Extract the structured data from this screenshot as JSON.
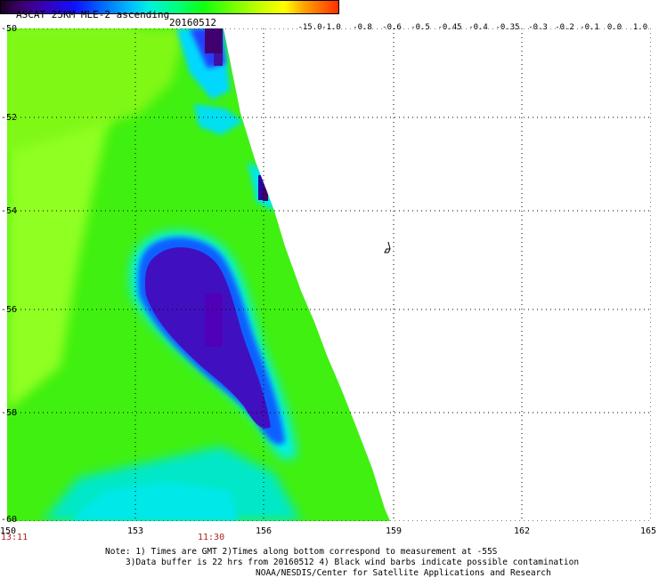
{
  "header": {
    "title": "ASCAT 25KM MLE-2 ascending",
    "date": "20160512"
  },
  "colorbar": {
    "labels": [
      "-15.0",
      "-1.0",
      "-0.8",
      "-0.6",
      "-0.5",
      "-0.45",
      "-0.4",
      "-0.35",
      "-0.3",
      "-0.2",
      "-0.1",
      "0.0",
      "1.0"
    ]
  },
  "axes": {
    "lat_labels": [
      "-50",
      "-52",
      "-54",
      "-56",
      "-58",
      "-60"
    ],
    "lon_labels": [
      "150",
      "153",
      "156",
      "159",
      "162",
      "165"
    ]
  },
  "times": [
    "13:11",
    "11:30"
  ],
  "notes": [
    "Note: 1) Times are GMT 2)Times along bottom correspond to measurement at -55S",
    "3)Data buffer is 22 hrs from 20160512 4) Black wind barbs indicate possible contamination",
    "NOAA/NESDIS/Center for Satellite Applications and Research"
  ],
  "colors": {
    "field_green": "#40f010",
    "lime": "#90ff20",
    "cyan": "#00e8e8",
    "blue": "#1040ff",
    "indigo": "#4010c0",
    "purple": "#300060"
  }
}
